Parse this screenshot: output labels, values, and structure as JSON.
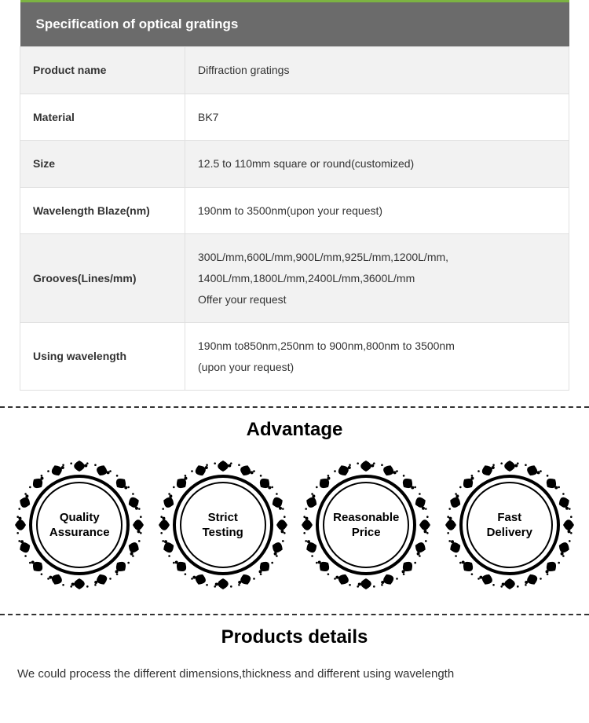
{
  "spec_table": {
    "header": "Specification of optical gratings",
    "header_bg": "#6b6b6b",
    "header_text_color": "#ffffff",
    "accent_top_color": "#7cb342",
    "row_odd_bg": "#f2f2f2",
    "row_even_bg": "#ffffff",
    "border_color": "#e0e0e0",
    "label_fontweight": "bold",
    "rows": [
      {
        "label": "Product name",
        "value": "Diffraction gratings"
      },
      {
        "label": "Material",
        "value": "BK7"
      },
      {
        "label": "Size",
        "value": "12.5 to 110mm square or round(customized)"
      },
      {
        "label": "Wavelength Blaze(nm)",
        "value": "190nm to 3500nm(upon your request)"
      },
      {
        "label": "Grooves(Lines/mm)",
        "value": "300L/mm,600L/mm,900L/mm,925L/mm,1200L/mm,\n1400L/mm,1800L/mm,2400L/mm,3600L/mm\nOffer your request"
      },
      {
        "label": "Using wavelength",
        "value": "190nm to850nm,250nm to 900nm,800nm to 3500nm\n(upon your request)"
      }
    ]
  },
  "advantage": {
    "title": "Advantage",
    "badges": [
      {
        "text": "Quality\nAssurance"
      },
      {
        "text": "Strict\nTesting"
      },
      {
        "text": "Reasonable\nPrice"
      },
      {
        "text": "Fast\nDelivery"
      }
    ],
    "badge_frame_color": "#000000",
    "badge_inner_bg": "#ffffff"
  },
  "products_details": {
    "title": "Products details",
    "text": "We could process the different dimensions,thickness and different using wavelength"
  },
  "divider_color": "#333333"
}
